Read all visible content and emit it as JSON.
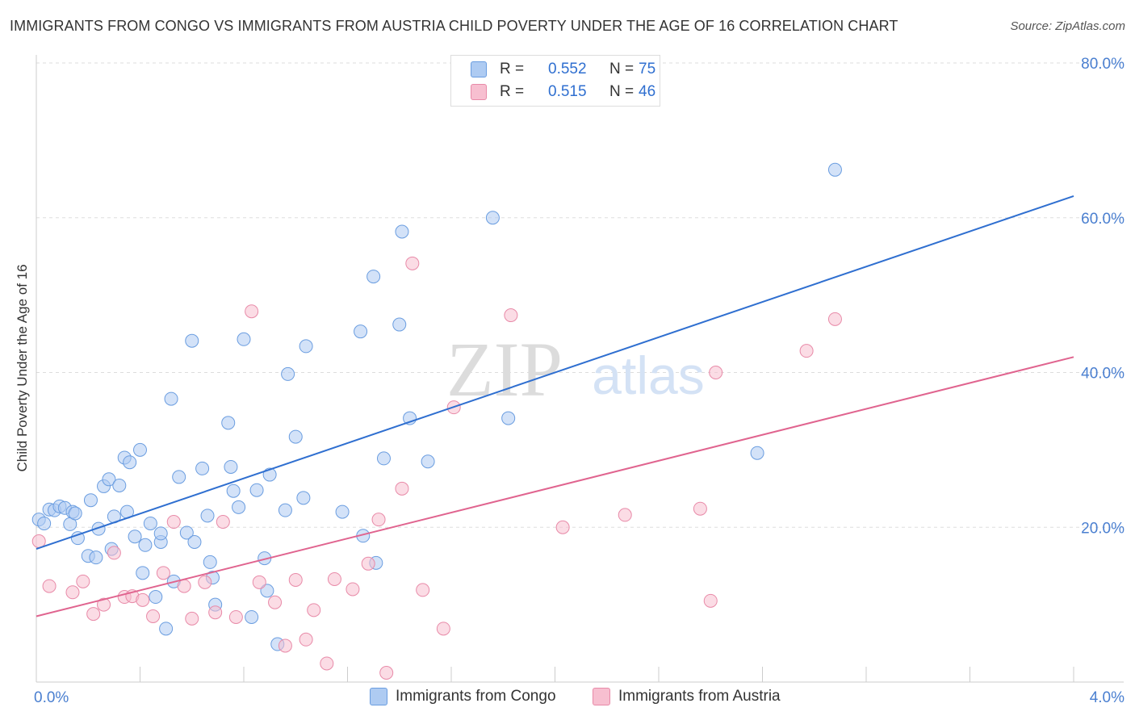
{
  "title": "IMMIGRANTS FROM CONGO VS IMMIGRANTS FROM AUSTRIA CHILD POVERTY UNDER THE AGE OF 16 CORRELATION CHART",
  "source": "Source: ZipAtlas.com",
  "watermark": {
    "zip": "ZIP",
    "atlas": "atlas"
  },
  "legend_top": {
    "rows": [
      {
        "r_label": "R =",
        "r_value": "0.552",
        "n_label": "N =",
        "n_value": "75"
      },
      {
        "r_label": "R =",
        "r_value": "0.515",
        "n_label": "N =",
        "n_value": "46"
      }
    ]
  },
  "legend_bottom": [
    {
      "label": "Immigrants from Congo"
    },
    {
      "label": "Immigrants from Austria"
    }
  ],
  "colors": {
    "congo_fill": "#aecbf2",
    "congo_stroke": "#6a9de0",
    "congo_line": "#2f6fd0",
    "austria_fill": "#f7bfd0",
    "austria_stroke": "#e88aa8",
    "austria_line": "#e0648f",
    "tick_label": "#4a7fd0",
    "grid": "#dddddd"
  },
  "chart_data": {
    "type": "scatter",
    "title": "IMMIGRANTS FROM CONGO VS IMMIGRANTS FROM AUSTRIA CHILD POVERTY UNDER THE AGE OF 16 CORRELATION CHART",
    "xlabel": "",
    "ylabel": "Child Poverty Under the Age of 16",
    "xlim": [
      0,
      4
    ],
    "ylim": [
      0,
      80
    ],
    "x_tick_labels": [
      "0.0%",
      "4.0%"
    ],
    "y_ticks": [
      20,
      40,
      60,
      80
    ],
    "y_tick_labels": [
      "20.0%",
      "40.0%",
      "60.0%",
      "80.0%"
    ],
    "grid": true,
    "legend": "top-center",
    "series": [
      {
        "name": "Immigrants from Congo",
        "points": [
          [
            0.01,
            21.0
          ],
          [
            0.03,
            20.5
          ],
          [
            0.05,
            22.3
          ],
          [
            0.07,
            22.2
          ],
          [
            0.09,
            22.7
          ],
          [
            0.11,
            22.5
          ],
          [
            0.13,
            20.4
          ],
          [
            0.14,
            22.0
          ],
          [
            0.15,
            21.8
          ],
          [
            0.16,
            18.6
          ],
          [
            0.2,
            16.3
          ],
          [
            0.21,
            23.5
          ],
          [
            0.23,
            16.1
          ],
          [
            0.24,
            19.8
          ],
          [
            0.26,
            25.3
          ],
          [
            0.28,
            26.2
          ],
          [
            0.29,
            17.2
          ],
          [
            0.3,
            21.4
          ],
          [
            0.32,
            25.4
          ],
          [
            0.34,
            29.0
          ],
          [
            0.35,
            22.0
          ],
          [
            0.36,
            28.4
          ],
          [
            0.38,
            18.8
          ],
          [
            0.4,
            30.0
          ],
          [
            0.41,
            14.1
          ],
          [
            0.42,
            17.7
          ],
          [
            0.44,
            20.5
          ],
          [
            0.46,
            11.0
          ],
          [
            0.48,
            18.1
          ],
          [
            0.48,
            19.2
          ],
          [
            0.5,
            6.9
          ],
          [
            0.52,
            36.6
          ],
          [
            0.53,
            13.0
          ],
          [
            0.55,
            26.5
          ],
          [
            0.58,
            19.3
          ],
          [
            0.6,
            44.1
          ],
          [
            0.61,
            18.1
          ],
          [
            0.64,
            27.6
          ],
          [
            0.66,
            21.5
          ],
          [
            0.67,
            15.5
          ],
          [
            0.68,
            13.5
          ],
          [
            0.69,
            10.0
          ],
          [
            0.74,
            33.5
          ],
          [
            0.75,
            27.8
          ],
          [
            0.76,
            24.7
          ],
          [
            0.78,
            22.6
          ],
          [
            0.8,
            44.3
          ],
          [
            0.83,
            8.4
          ],
          [
            0.85,
            24.8
          ],
          [
            0.88,
            16.0
          ],
          [
            0.89,
            11.8
          ],
          [
            0.9,
            26.8
          ],
          [
            0.93,
            4.9
          ],
          [
            0.96,
            22.2
          ],
          [
            0.97,
            39.8
          ],
          [
            1.0,
            31.7
          ],
          [
            1.03,
            23.8
          ],
          [
            1.04,
            43.4
          ],
          [
            1.18,
            22.0
          ],
          [
            1.25,
            45.3
          ],
          [
            1.26,
            18.9
          ],
          [
            1.3,
            52.4
          ],
          [
            1.31,
            15.4
          ],
          [
            1.34,
            28.9
          ],
          [
            1.4,
            46.2
          ],
          [
            1.41,
            58.2
          ],
          [
            1.44,
            34.1
          ],
          [
            1.51,
            28.5
          ],
          [
            1.76,
            60.0
          ],
          [
            1.82,
            34.1
          ],
          [
            2.78,
            29.6
          ],
          [
            3.08,
            66.2
          ]
        ]
      },
      {
        "name": "Immigrants from Austria",
        "points": [
          [
            0.01,
            18.2
          ],
          [
            0.05,
            12.4
          ],
          [
            0.14,
            11.6
          ],
          [
            0.18,
            13.0
          ],
          [
            0.22,
            8.8
          ],
          [
            0.26,
            10.0
          ],
          [
            0.3,
            16.7
          ],
          [
            0.34,
            11.0
          ],
          [
            0.37,
            11.1
          ],
          [
            0.41,
            10.6
          ],
          [
            0.45,
            8.5
          ],
          [
            0.49,
            14.1
          ],
          [
            0.53,
            20.7
          ],
          [
            0.57,
            12.4
          ],
          [
            0.6,
            8.2
          ],
          [
            0.65,
            12.9
          ],
          [
            0.69,
            9.0
          ],
          [
            0.72,
            20.7
          ],
          [
            0.77,
            8.4
          ],
          [
            0.83,
            47.9
          ],
          [
            0.86,
            12.9
          ],
          [
            0.92,
            10.3
          ],
          [
            0.96,
            4.7
          ],
          [
            1.0,
            13.2
          ],
          [
            1.04,
            5.5
          ],
          [
            1.07,
            9.3
          ],
          [
            1.12,
            2.4
          ],
          [
            1.15,
            13.3
          ],
          [
            1.22,
            12.0
          ],
          [
            1.28,
            15.3
          ],
          [
            1.32,
            21.0
          ],
          [
            1.35,
            1.2
          ],
          [
            1.41,
            25.0
          ],
          [
            1.45,
            54.1
          ],
          [
            1.49,
            11.9
          ],
          [
            1.57,
            6.9
          ],
          [
            1.61,
            35.5
          ],
          [
            1.83,
            47.4
          ],
          [
            2.03,
            20.0
          ],
          [
            2.27,
            21.6
          ],
          [
            2.56,
            22.4
          ],
          [
            2.6,
            10.5
          ],
          [
            2.62,
            40.0
          ],
          [
            2.97,
            42.8
          ],
          [
            3.08,
            46.9
          ]
        ]
      }
    ],
    "trendlines": [
      {
        "series": "Immigrants from Congo",
        "x": [
          0,
          4
        ],
        "y": [
          17.2,
          62.8
        ]
      },
      {
        "series": "Immigrants from Austria",
        "x": [
          0,
          4
        ],
        "y": [
          8.5,
          42.0
        ]
      }
    ]
  }
}
